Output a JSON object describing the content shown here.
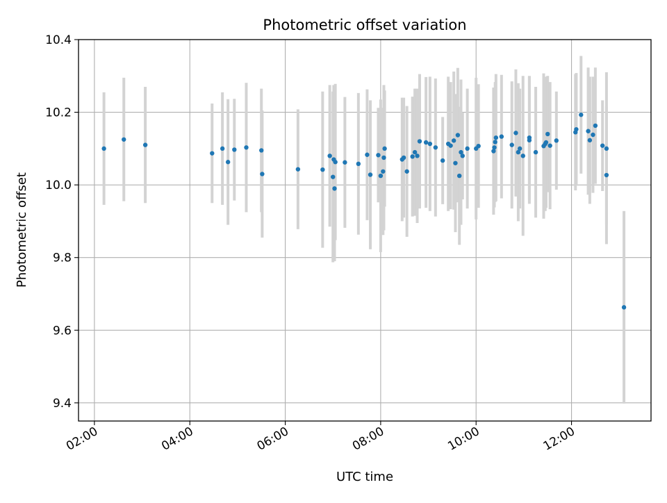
{
  "chart_data": {
    "type": "scatter",
    "title": "Photometric offset variation",
    "xlabel": "UTC time",
    "ylabel": "Photometric offset",
    "x_tick_labels": [
      "02:00",
      "04:00",
      "06:00",
      "08:00",
      "10:00",
      "12:00"
    ],
    "y_tick_labels": [
      "9.4",
      "9.6",
      "9.8",
      "10.0",
      "10.2",
      "10.4"
    ],
    "xlim": [
      "01:40",
      "13:40"
    ],
    "ylim": [
      9.35,
      10.4
    ],
    "grid": true,
    "colors": {
      "point": "#1f77b4",
      "errorbar": "#d3d3d3",
      "grid": "#b0b0b0"
    },
    "points": [
      {
        "x": "02:12",
        "y": 10.1,
        "err": 0.155
      },
      {
        "x": "02:37",
        "y": 10.125,
        "err": 0.17
      },
      {
        "x": "03:04",
        "y": 10.11,
        "err": 0.16
      },
      {
        "x": "04:28",
        "y": 10.087,
        "err": 0.137
      },
      {
        "x": "04:41",
        "y": 10.1,
        "err": 0.155
      },
      {
        "x": "04:48",
        "y": 10.063,
        "err": 0.173
      },
      {
        "x": "04:56",
        "y": 10.097,
        "err": 0.14
      },
      {
        "x": "05:11",
        "y": 10.103,
        "err": 0.178
      },
      {
        "x": "05:30",
        "y": 10.095,
        "err": 0.17
      },
      {
        "x": "05:31",
        "y": 10.03,
        "err": 0.175
      },
      {
        "x": "06:16",
        "y": 10.043,
        "err": 0.165
      },
      {
        "x": "06:47",
        "y": 10.042,
        "err": 0.215
      },
      {
        "x": "06:56",
        "y": 10.08,
        "err": 0.195
      },
      {
        "x": "07:00",
        "y": 10.022,
        "err": 0.235
      },
      {
        "x": "07:01",
        "y": 10.07,
        "err": 0.205
      },
      {
        "x": "07:02",
        "y": 9.99,
        "err": 0.2
      },
      {
        "x": "07:03",
        "y": 10.063,
        "err": 0.215
      },
      {
        "x": "07:15",
        "y": 10.062,
        "err": 0.18
      },
      {
        "x": "07:32",
        "y": 10.058,
        "err": 0.195
      },
      {
        "x": "07:43",
        "y": 10.083,
        "err": 0.18
      },
      {
        "x": "07:47",
        "y": 10.028,
        "err": 0.205
      },
      {
        "x": "07:57",
        "y": 10.082,
        "err": 0.13
      },
      {
        "x": "08:00",
        "y": 10.025,
        "err": 0.21
      },
      {
        "x": "08:03",
        "y": 10.037,
        "err": 0.175
      },
      {
        "x": "08:04",
        "y": 10.075,
        "err": 0.2
      },
      {
        "x": "08:05",
        "y": 10.1,
        "err": 0.16
      },
      {
        "x": "08:27",
        "y": 10.07,
        "err": 0.17
      },
      {
        "x": "08:29",
        "y": 10.075,
        "err": 0.165
      },
      {
        "x": "08:33",
        "y": 10.037,
        "err": 0.18
      },
      {
        "x": "08:40",
        "y": 10.078,
        "err": 0.165
      },
      {
        "x": "08:43",
        "y": 10.09,
        "err": 0.175
      },
      {
        "x": "08:46",
        "y": 10.08,
        "err": 0.185
      },
      {
        "x": "08:49",
        "y": 10.12,
        "err": 0.185
      },
      {
        "x": "08:57",
        "y": 10.117,
        "err": 0.18
      },
      {
        "x": "09:02",
        "y": 10.113,
        "err": 0.185
      },
      {
        "x": "09:09",
        "y": 10.103,
        "err": 0.19
      },
      {
        "x": "09:18",
        "y": 10.067,
        "err": 0.12
      },
      {
        "x": "09:25",
        "y": 10.113,
        "err": 0.185
      },
      {
        "x": "09:28",
        "y": 10.108,
        "err": 0.175
      },
      {
        "x": "09:32",
        "y": 10.122,
        "err": 0.19
      },
      {
        "x": "09:34",
        "y": 10.06,
        "err": 0.19
      },
      {
        "x": "09:37",
        "y": 10.137,
        "err": 0.185
      },
      {
        "x": "09:39",
        "y": 10.025,
        "err": 0.19
      },
      {
        "x": "09:41",
        "y": 10.09,
        "err": 0.2
      },
      {
        "x": "09:43",
        "y": 10.08,
        "err": 0.12
      },
      {
        "x": "09:49",
        "y": 10.1,
        "err": 0.165
      },
      {
        "x": "10:00",
        "y": 10.1,
        "err": 0.195
      },
      {
        "x": "10:03",
        "y": 10.107,
        "err": 0.17
      },
      {
        "x": "10:22",
        "y": 10.093,
        "err": 0.175
      },
      {
        "x": "10:23",
        "y": 10.103,
        "err": 0.165
      },
      {
        "x": "10:24",
        "y": 10.118,
        "err": 0.165
      },
      {
        "x": "10:25",
        "y": 10.13,
        "err": 0.175
      },
      {
        "x": "10:32",
        "y": 10.133,
        "err": 0.17
      },
      {
        "x": "10:45",
        "y": 10.11,
        "err": 0.175
      },
      {
        "x": "10:50",
        "y": 10.143,
        "err": 0.175
      },
      {
        "x": "10:53",
        "y": 10.09,
        "err": 0.19
      },
      {
        "x": "10:55",
        "y": 10.1,
        "err": 0.165
      },
      {
        "x": "10:59",
        "y": 10.08,
        "err": 0.22
      },
      {
        "x": "11:07",
        "y": 10.13,
        "err": 0.17
      },
      {
        "x": "11:07",
        "y": 10.123,
        "err": 0.175
      },
      {
        "x": "11:15",
        "y": 10.09,
        "err": 0.18
      },
      {
        "x": "11:25",
        "y": 10.107,
        "err": 0.2
      },
      {
        "x": "11:27",
        "y": 10.113,
        "err": 0.185
      },
      {
        "x": "11:28",
        "y": 10.117,
        "err": 0.18
      },
      {
        "x": "11:30",
        "y": 10.14,
        "err": 0.16
      },
      {
        "x": "11:33",
        "y": 10.108,
        "err": 0.175
      },
      {
        "x": "11:41",
        "y": 10.122,
        "err": 0.135
      },
      {
        "x": "12:05",
        "y": 10.145,
        "err": 0.16
      },
      {
        "x": "12:06",
        "y": 10.153,
        "err": 0.155
      },
      {
        "x": "12:12",
        "y": 10.193,
        "err": 0.162
      },
      {
        "x": "12:21",
        "y": 10.148,
        "err": 0.175
      },
      {
        "x": "12:23",
        "y": 10.123,
        "err": 0.175
      },
      {
        "x": "12:27",
        "y": 10.138,
        "err": 0.16
      },
      {
        "x": "12:30",
        "y": 10.163,
        "err": 0.16
      },
      {
        "x": "12:39",
        "y": 10.108,
        "err": 0.125
      },
      {
        "x": "12:44",
        "y": 10.027,
        "err": 0.19
      },
      {
        "x": "12:44",
        "y": 10.1,
        "err": 0.21
      },
      {
        "x": "13:06",
        "y": 9.663,
        "err": 0.265
      }
    ]
  }
}
